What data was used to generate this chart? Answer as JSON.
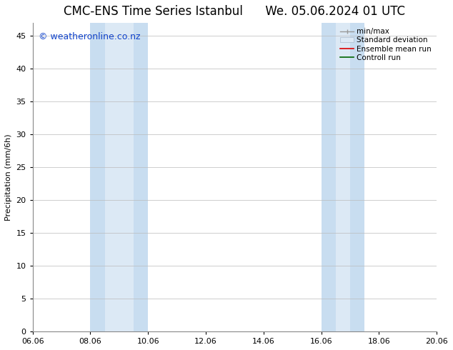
{
  "title_left": "CMC-ENS Time Series Istanbul",
  "title_right": "We. 05.06.2024 01 UTC",
  "ylabel": "Precipitation (mm/6h)",
  "xlabel": "",
  "ylim": [
    0,
    47
  ],
  "yticks": [
    0,
    5,
    10,
    15,
    20,
    25,
    30,
    35,
    40,
    45
  ],
  "xtick_labels": [
    "06.06",
    "08.06",
    "10.06",
    "12.06",
    "14.06",
    "16.06",
    "18.06",
    "20.06"
  ],
  "xtick_values": [
    0,
    2,
    4,
    6,
    8,
    10,
    12,
    14
  ],
  "x_total": 14,
  "shaded_bands": [
    {
      "x_start": 2.0,
      "x_end": 2.5,
      "color": "#dce9f5"
    },
    {
      "x_start": 2.5,
      "x_end": 4.0,
      "color": "#dce9f5"
    },
    {
      "x_start": 10.0,
      "x_end": 10.5,
      "color": "#dce9f5"
    },
    {
      "x_start": 10.5,
      "x_end": 11.5,
      "color": "#dce9f5"
    }
  ],
  "shaded_bands_v2": [
    {
      "x_start": 2.0,
      "x_end": 4.0,
      "color": "#dce9f5"
    },
    {
      "x_start": 10.0,
      "x_end": 11.5,
      "color": "#dce9f5"
    }
  ],
  "watermark_text": "© weatheronline.co.nz",
  "watermark_color": "#1144cc",
  "watermark_fontsize": 9,
  "bg_color": "#ffffff",
  "plot_bg_color": "#ffffff",
  "grid_color": "#bbbbbb",
  "title_fontsize": 12,
  "axis_label_fontsize": 8,
  "tick_fontsize": 8,
  "legend_fontsize": 7.5
}
